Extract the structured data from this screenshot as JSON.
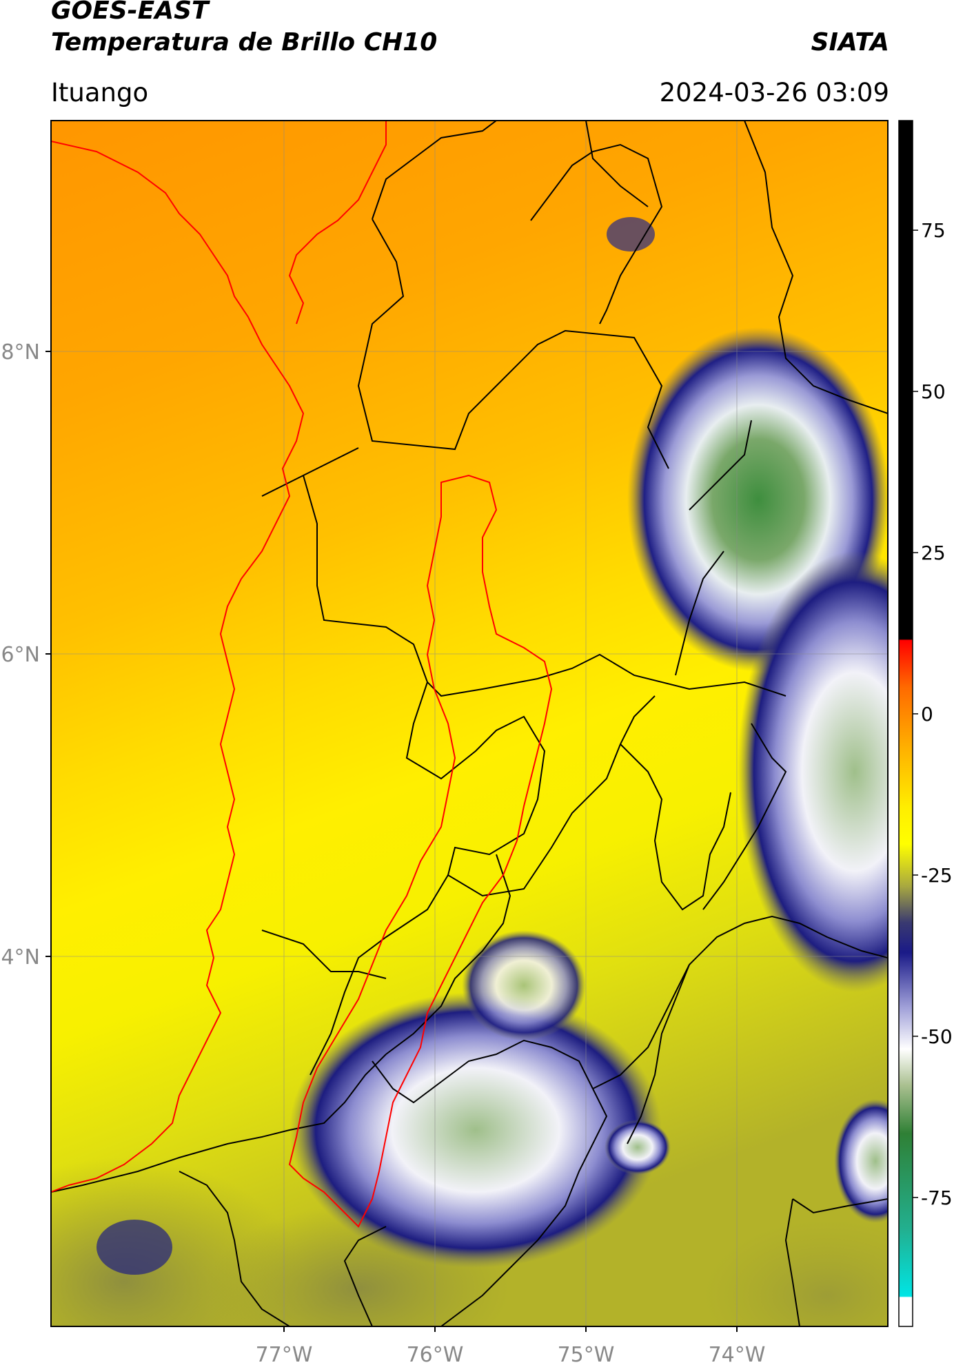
{
  "header": {
    "line1": "GOES-EAST",
    "line2": "Temperatura de Brillo CH10",
    "brand": "SIATA",
    "region": "Ituango",
    "datetime": "2024-03-26 03:09"
  },
  "map": {
    "lat_ticks": [
      "8°N",
      "6°N",
      "4°N"
    ],
    "lon_ticks": [
      "77°W",
      "76°W",
      "75°W",
      "74°W"
    ]
  },
  "colorbar": {
    "tick_labels": [
      "75",
      "50",
      "25",
      "0",
      "-25",
      "-50",
      "-75"
    ],
    "tick_values": [
      75,
      50,
      25,
      0,
      -25,
      -50,
      -75
    ],
    "range": [
      -95,
      92
    ],
    "colors": {
      "black": "#000000",
      "red": "#ff1a00",
      "orange": "#ff9a00",
      "yellow": "#ffff00",
      "olive": "#8a8a3a",
      "navy": "#1a1a7a",
      "lavender": "#b8b8e0",
      "white": "#ffffff",
      "green": "#2e7d32",
      "teal": "#20c0a0",
      "cyan": "#00e5e5"
    }
  },
  "outline_colors": {
    "boundaries": "#000000",
    "highlight": "#ff0000"
  }
}
